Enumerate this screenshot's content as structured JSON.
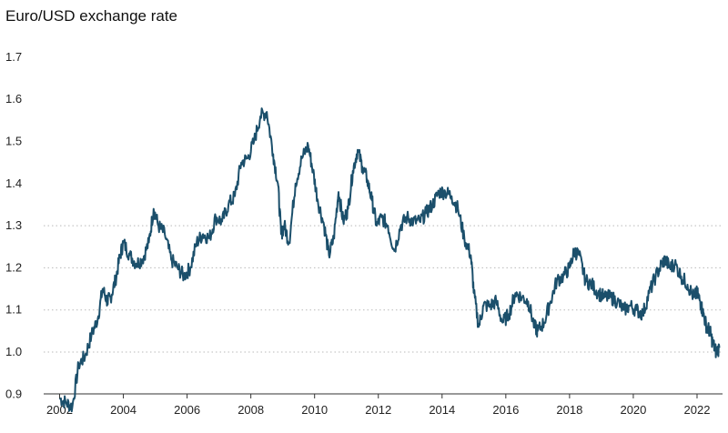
{
  "chart_data": {
    "type": "line",
    "title": "Euro/USD exchange rate",
    "xlabel": "",
    "ylabel": "",
    "xlim": [
      2001.5,
      2022.8
    ],
    "ylim": [
      0.9,
      1.7
    ],
    "yticks": [
      "0.9",
      "1.0",
      "1.1",
      "1.2",
      "1.3",
      "1.4",
      "1.5",
      "1.6",
      "1.7"
    ],
    "xticks": [
      "2002",
      "2004",
      "2006",
      "2008",
      "2010",
      "2012",
      "2014",
      "2016",
      "2018",
      "2020",
      "2022"
    ],
    "grid": "horizontal dotted",
    "color": "#1b4f6b",
    "series": [
      {
        "x": [
          2002.0,
          2002.2,
          2002.4,
          2002.6,
          2002.8,
          2003.0,
          2003.2,
          2003.35,
          2003.5,
          2003.6,
          2003.75,
          2003.9,
          2004.0,
          2004.2,
          2004.4,
          2004.6,
          2004.8,
          2004.95,
          2005.1,
          2005.3,
          2005.5,
          2005.7,
          2005.9,
          2006.1,
          2006.3,
          2006.5,
          2006.7,
          2006.9,
          2007.1,
          2007.3,
          2007.5,
          2007.7,
          2007.9,
          2008.1,
          2008.3,
          2008.5,
          2008.7,
          2008.85,
          2008.95,
          2009.05,
          2009.2,
          2009.4,
          2009.6,
          2009.8,
          2009.95,
          2010.1,
          2010.3,
          2010.45,
          2010.6,
          2010.75,
          2010.9,
          2011.05,
          2011.2,
          2011.35,
          2011.5,
          2011.65,
          2011.8,
          2011.95,
          2012.1,
          2012.3,
          2012.5,
          2012.7,
          2012.9,
          2013.1,
          2013.3,
          2013.5,
          2013.7,
          2013.9,
          2014.1,
          2014.3,
          2014.5,
          2014.7,
          2014.9,
          2015.0,
          2015.15,
          2015.3,
          2015.5,
          2015.7,
          2015.9,
          2016.1,
          2016.3,
          2016.5,
          2016.7,
          2016.9,
          2017.0,
          2017.2,
          2017.4,
          2017.6,
          2017.8,
          2018.0,
          2018.15,
          2018.3,
          2018.5,
          2018.7,
          2018.9,
          2019.1,
          2019.3,
          2019.5,
          2019.7,
          2019.9,
          2020.1,
          2020.3,
          2020.5,
          2020.7,
          2020.9,
          2021.0,
          2021.15,
          2021.3,
          2021.5,
          2021.7,
          2021.9,
          2022.0,
          2022.1,
          2022.2,
          2022.3,
          2022.4,
          2022.5,
          2022.6,
          2022.7
        ],
        "y": [
          0.89,
          0.88,
          0.87,
          0.97,
          0.99,
          1.04,
          1.08,
          1.15,
          1.12,
          1.13,
          1.17,
          1.23,
          1.26,
          1.23,
          1.21,
          1.22,
          1.26,
          1.34,
          1.3,
          1.28,
          1.22,
          1.2,
          1.18,
          1.2,
          1.26,
          1.28,
          1.27,
          1.32,
          1.31,
          1.35,
          1.37,
          1.45,
          1.46,
          1.5,
          1.56,
          1.57,
          1.47,
          1.4,
          1.28,
          1.3,
          1.26,
          1.4,
          1.46,
          1.49,
          1.43,
          1.36,
          1.3,
          1.23,
          1.27,
          1.38,
          1.31,
          1.34,
          1.43,
          1.48,
          1.44,
          1.41,
          1.36,
          1.3,
          1.32,
          1.3,
          1.24,
          1.3,
          1.32,
          1.31,
          1.31,
          1.33,
          1.35,
          1.38,
          1.38,
          1.37,
          1.34,
          1.27,
          1.23,
          1.14,
          1.06,
          1.11,
          1.11,
          1.12,
          1.07,
          1.09,
          1.14,
          1.13,
          1.12,
          1.06,
          1.05,
          1.07,
          1.12,
          1.17,
          1.18,
          1.2,
          1.24,
          1.23,
          1.17,
          1.16,
          1.14,
          1.13,
          1.13,
          1.12,
          1.1,
          1.11,
          1.1,
          1.09,
          1.14,
          1.18,
          1.21,
          1.22,
          1.2,
          1.21,
          1.18,
          1.16,
          1.13,
          1.14,
          1.12,
          1.09,
          1.06,
          1.05,
          1.02,
          1.0,
          1.01
        ]
      }
    ]
  }
}
